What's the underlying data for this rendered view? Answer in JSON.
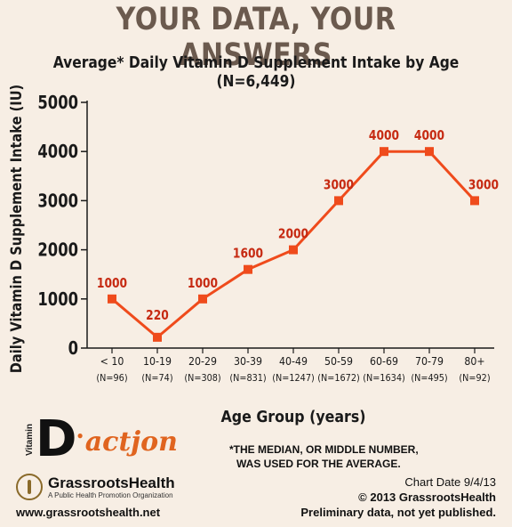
{
  "header": {
    "headline": "YOUR DATA, YOUR ANSWERS"
  },
  "chart_data": {
    "type": "line",
    "title": "Average* Daily Vitamin D Supplement Intake by Age (N=6,449)",
    "xlabel": "Age Group (years)",
    "ylabel": "Daily Vitamin D Supplement Intake (IU)",
    "categories": [
      "< 10",
      "10-19",
      "20-29",
      "30-39",
      "40-49",
      "50-59",
      "60-69",
      "70-79",
      "80+"
    ],
    "category_counts": [
      "(N=96)",
      "(N=74)",
      "(N=308)",
      "(N=831)",
      "(N=1247)",
      "(N=1672)",
      "(N=1634)",
      "(N=495)",
      "(N=92)"
    ],
    "series": [
      {
        "values": [
          1000,
          220,
          1000,
          1600,
          2000,
          3000,
          4000,
          4000,
          3000
        ]
      }
    ],
    "data_labels": [
      "1000",
      "220",
      "1000",
      "1600",
      "2000",
      "3000",
      "4000",
      "4000",
      "3000"
    ],
    "ylim": [
      0,
      5000
    ],
    "yticks": [
      0,
      1000,
      2000,
      3000,
      4000,
      5000
    ],
    "grid": false,
    "colors": {
      "line": "#ef4b1c",
      "marker": "#ef4b1c",
      "data_label": "#c62a12",
      "axis": "#1a1a1a"
    }
  },
  "branding": {
    "vitamin_word": "Vitamin",
    "d_letter": "D",
    "action_word": "actjon",
    "org_name": "GrassrootsHealth",
    "org_tagline": "A Public Health Promotion Organization",
    "url": "www.grassrootshealth.net"
  },
  "footnote": {
    "line1": "*THE MEDIAN, OR MIDDLE NUMBER,",
    "line2": "WAS USED FOR THE AVERAGE."
  },
  "credits": {
    "chart_date": "Chart Date 9/4/13",
    "copyright": "© 2013 GrassrootsHealth",
    "status": "Preliminary data, not yet published."
  }
}
